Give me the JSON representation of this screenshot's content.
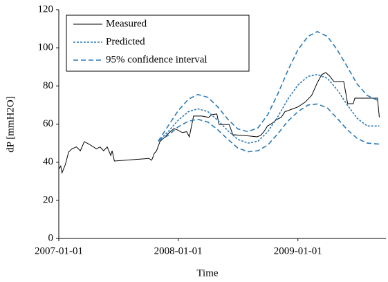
{
  "chart_data": {
    "type": "line",
    "xlabel": "Time",
    "ylabel": "dP [mmH2O]",
    "xlim": [
      "2007-01-01",
      "2009-09-27"
    ],
    "xticks": [
      "2007-01-01",
      "2008-01-01",
      "2009-01-01"
    ],
    "ylim": [
      0,
      120
    ],
    "yticks": [
      0,
      20,
      40,
      60,
      80,
      100,
      120
    ],
    "legend": "upper-left",
    "series": [
      {
        "name": "Measured",
        "color": "#000000",
        "dash": "none",
        "x": [
          "2007-01-01",
          "2007-01-07",
          "2007-01-11",
          "2007-01-21",
          "2007-01-31",
          "2007-02-10",
          "2007-02-24",
          "2007-03-08",
          "2007-03-20",
          "2007-04-05",
          "2007-04-26",
          "2007-05-07",
          "2007-05-18",
          "2007-05-29",
          "2007-06-09",
          "2007-06-13",
          "2007-06-20",
          "2007-10-04",
          "2007-10-12",
          "2007-10-20",
          "2007-10-27",
          "2007-11-06",
          "2007-11-17",
          "2007-11-28",
          "2007-12-08",
          "2007-12-19",
          "2007-12-29",
          "2008-01-14",
          "2008-01-27",
          "2008-02-04",
          "2008-02-17",
          "2008-03-13",
          "2008-04-03",
          "2008-04-14",
          "2008-04-28",
          "2008-05-05",
          "2008-06-05",
          "2008-06-16",
          "2008-07-18",
          "2008-08-08",
          "2008-08-29",
          "2008-09-09",
          "2008-09-19",
          "2008-09-30",
          "2008-10-15",
          "2008-10-28",
          "2008-11-11",
          "2008-11-22",
          "2008-12-13",
          "2009-01-01",
          "2009-01-23",
          "2009-02-12",
          "2009-03-01",
          "2009-03-15",
          "2009-03-27",
          "2009-04-08",
          "2009-04-21",
          "2009-05-21",
          "2009-06-02",
          "2009-06-19",
          "2009-06-24",
          "2009-09-01",
          "2009-09-07"
        ],
        "values": [
          36.3,
          38,
          34.4,
          38.8,
          45.3,
          47,
          48,
          46,
          50.8,
          49.3,
          47,
          48,
          46,
          48,
          43.5,
          46,
          40.6,
          42,
          41,
          44.6,
          46,
          50.8,
          52.5,
          54.4,
          56,
          57.6,
          57,
          55.5,
          56,
          53.3,
          64.2,
          64.2,
          63.5,
          65,
          65.3,
          59.8,
          59.8,
          54.4,
          54,
          53.7,
          53.3,
          54,
          56,
          59,
          60.5,
          62.4,
          63.5,
          66.4,
          67.8,
          69,
          71.5,
          75,
          81.6,
          86,
          87,
          85.2,
          82.3,
          82.3,
          70.7,
          70.7,
          73.6,
          73.6,
          63.5
        ]
      },
      {
        "name": "Predicted",
        "color": "#2a7ab8",
        "dash": "3 2",
        "x": [
          "2007-11-01",
          "2007-12-01",
          "2008-01-01",
          "2008-02-01",
          "2008-03-01",
          "2008-04-01",
          "2008-05-01",
          "2008-06-01",
          "2008-07-01",
          "2008-08-01",
          "2008-09-01",
          "2008-10-01",
          "2008-11-01",
          "2008-12-01",
          "2009-01-01",
          "2009-02-01",
          "2009-03-01",
          "2009-04-01",
          "2009-05-01",
          "2009-06-01",
          "2009-07-01",
          "2009-08-01",
          "2009-09-07"
        ],
        "values": [
          51,
          56,
          62,
          66.5,
          68,
          66.5,
          62,
          56.5,
          52,
          50,
          51,
          56,
          64,
          73,
          80.5,
          85,
          86,
          84,
          78,
          70,
          63,
          59,
          59
        ]
      },
      {
        "name": "95% confidence interval",
        "color": "#2a7ab8",
        "dash": "7 4",
        "x": [
          "2007-11-01",
          "2007-12-01",
          "2008-01-01",
          "2008-02-01",
          "2008-03-01",
          "2008-04-01",
          "2008-05-01",
          "2008-06-01",
          "2008-07-01",
          "2008-08-01",
          "2008-09-01",
          "2008-10-01",
          "2008-11-01",
          "2008-12-01",
          "2009-01-01",
          "2009-02-01",
          "2009-03-01",
          "2009-04-01",
          "2009-05-01",
          "2009-06-01",
          "2009-07-01",
          "2009-08-01",
          "2009-09-07"
        ],
        "upper": [
          51,
          59,
          67,
          73,
          75.5,
          74,
          69,
          62.5,
          57.5,
          56,
          58,
          65,
          76,
          88,
          99,
          106,
          108.5,
          106,
          99,
          90,
          81,
          75,
          72
        ],
        "lower": [
          51,
          54,
          58.5,
          61.5,
          62.5,
          61,
          57,
          52,
          47.5,
          45.5,
          46,
          49,
          55,
          61.5,
          66.5,
          70,
          70.5,
          68.5,
          63,
          57,
          52.5,
          50,
          49.5
        ]
      }
    ]
  }
}
